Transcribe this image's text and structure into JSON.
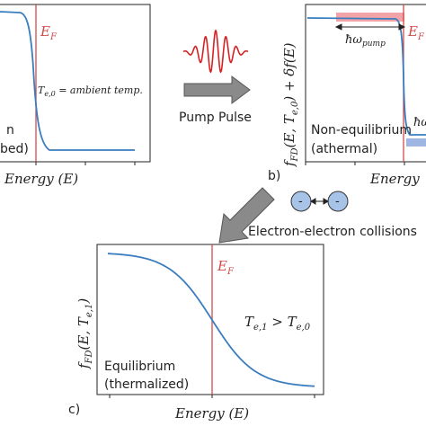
{
  "colors": {
    "curve": "#3a7dbf",
    "fermi_line": "#d24a4a",
    "pulse": "#d62222",
    "arrow": "#8a8a8a",
    "pink_band": "#f2a3a8",
    "blue_band": "#9fb6e3",
    "electron": "#a8c3e8"
  },
  "panel_a": {
    "ef_label": "E",
    "ef_sub": "F",
    "temp_label": "T",
    "temp_sub": "e,0",
    "temp_rest": " = ambient temp.",
    "state_line1": "n",
    "state_line2": "bed)",
    "xlabel": "Energy (E)"
  },
  "pulse": {
    "label": "Pump Pulse"
  },
  "panel_b": {
    "tag": "b)",
    "ylabel": "f_FD(E, T_e,0) + δf(E)",
    "ef_label": "E",
    "ef_sub": "F",
    "pump_label": "ħω",
    "pump_sub": "pump",
    "pump_label_right": "ħω",
    "state_line1": "Non-equilibrium",
    "state_line2": "(athermal)",
    "xlabel": "Energy"
  },
  "collisions": {
    "electron_sign": "-",
    "label": "Electron-electron collisions"
  },
  "panel_c": {
    "tag": "c)",
    "ylabel": "f_FD(E, T_e,1)",
    "ef_label": "E",
    "ef_sub": "F",
    "relation_a": "T",
    "relation_a_sub": "e,1",
    "relation_op": " > ",
    "relation_b": "T",
    "relation_b_sub": "e,0",
    "state_line1": "Equilibrium",
    "state_line2": "(thermalized)",
    "xlabel": "Energy (E)"
  }
}
